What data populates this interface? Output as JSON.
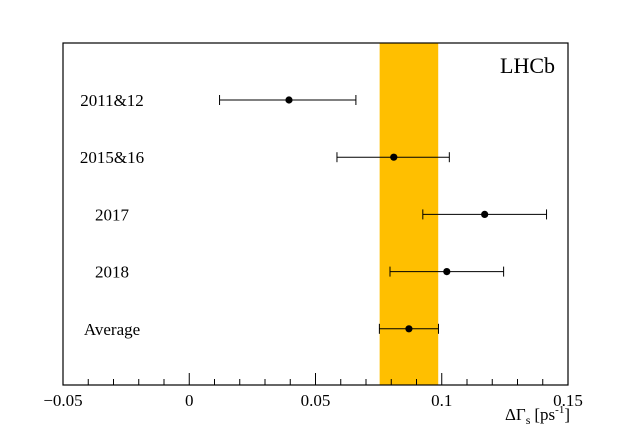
{
  "chart_data": {
    "type": "scatter",
    "experiment_label": "LHCb",
    "xlabel_main": "ΔΓ",
    "xlabel_sub": "s",
    "xlabel_unit": "[ps",
    "xlabel_sup": "-1",
    "xlabel_close": "]",
    "xlim": [
      -0.05,
      0.15
    ],
    "x_ticks": [
      {
        "value": -0.05,
        "label": "−0.05"
      },
      {
        "value": 0,
        "label": "0"
      },
      {
        "value": 0.05,
        "label": "0.05"
      },
      {
        "value": 0.1,
        "label": "0.1"
      },
      {
        "value": 0.15,
        "label": "0.15"
      }
    ],
    "x_minor_step": 0.01,
    "grid": false,
    "band": {
      "low": 0.0754,
      "high": 0.0986,
      "color": "#ffbf00"
    },
    "points": [
      {
        "label": "2011&12",
        "value": 0.0395,
        "err_low": 0.0275,
        "err_high": 0.0265
      },
      {
        "label": "2015&16",
        "value": 0.081,
        "err_low": 0.0225,
        "err_high": 0.022
      },
      {
        "label": "2017",
        "value": 0.117,
        "err_low": 0.0245,
        "err_high": 0.0245
      },
      {
        "label": "2018",
        "value": 0.102,
        "err_low": 0.0225,
        "err_high": 0.0225
      },
      {
        "label": "Average",
        "value": 0.087,
        "err_low": 0.0117,
        "err_high": 0.0117
      }
    ]
  }
}
